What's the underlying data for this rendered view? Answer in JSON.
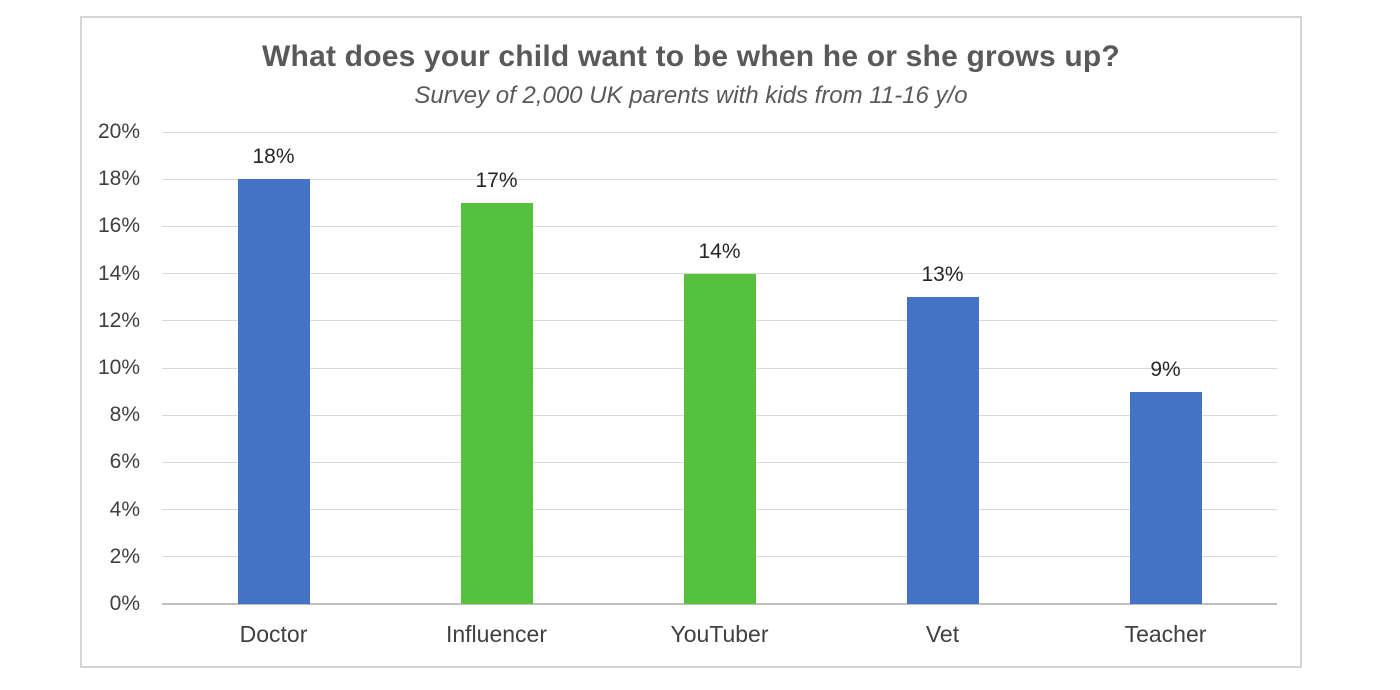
{
  "chart_data": {
    "type": "bar",
    "title": "What does your child want to be when he or she grows up?",
    "subtitle": "Survey of 2,000 UK parents with kids from 11-16 y/o",
    "categories": [
      "Doctor",
      "Influencer",
      "YouTuber",
      "Vet",
      "Teacher"
    ],
    "values": [
      18,
      17,
      14,
      13,
      9
    ],
    "data_labels": [
      "18%",
      "17%",
      "14%",
      "13%",
      "9%"
    ],
    "bar_colors": [
      "#4472c4",
      "#55c13c",
      "#55c13c",
      "#4472c4",
      "#4472c4"
    ],
    "y_axis": {
      "min": 0,
      "max": 20,
      "step": 2,
      "tick_labels": [
        "0%",
        "2%",
        "4%",
        "6%",
        "8%",
        "10%",
        "12%",
        "14%",
        "16%",
        "18%",
        "20%"
      ]
    },
    "grid": true,
    "legend": "none",
    "colors": {
      "blue_bar": "#4472c4",
      "green_bar": "#55c13c",
      "title_text": "#595959",
      "axis_text": "#404040",
      "data_label_text": "#262626",
      "gridline": "#d9d9d9",
      "axis_line": "#bfbfbf",
      "card_border": "#d4d4d4"
    }
  }
}
